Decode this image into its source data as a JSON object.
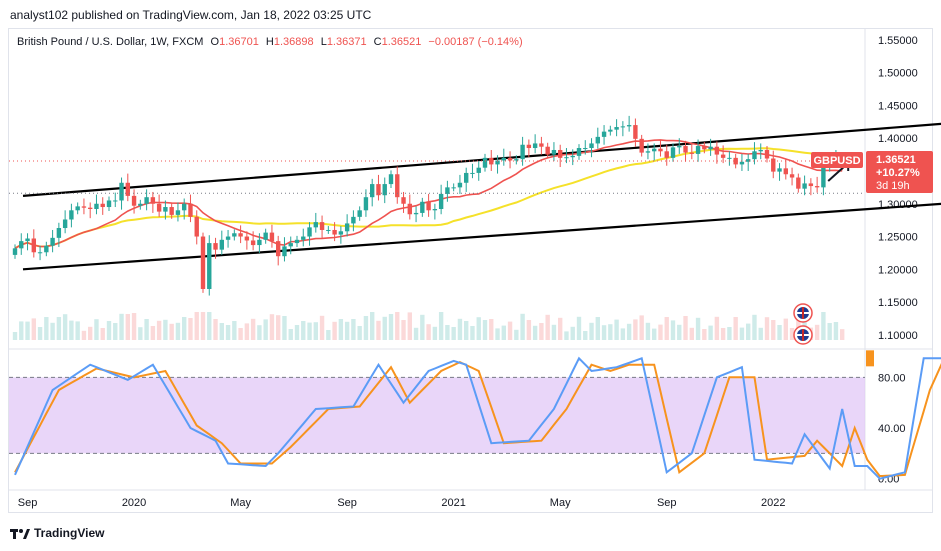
{
  "header": {
    "published_line": "analyst102 published on TradingView.com, Jan 18, 2022 03:25 UTC"
  },
  "legend": {
    "symbol": "British Pound / U.S. Dollar, 1W, FXCM",
    "open_label": "O",
    "open": "1.36701",
    "high_label": "H",
    "high": "1.36898",
    "low_label": "L",
    "low": "1.36371",
    "close_label": "C",
    "close": "1.36521",
    "change": "−0.00187 (−0.14%)"
  },
  "price_tags": {
    "symbol": "GBPUSD",
    "last": "1.36521",
    "pct": "+10.27%",
    "countdown": "3d 19h"
  },
  "colors": {
    "up": "#26a69a",
    "down": "#ef5350",
    "ma_fast": "#ef5350",
    "ma_slow": "#f5e12a",
    "channel": "#000000",
    "stoch_k": "#5b9cf6",
    "stoch_d": "#f7931e",
    "stoch_band": "#e1c8f7"
  },
  "footer": {
    "brand": "TradingView"
  },
  "chart_data": [
    {
      "type": "candlestick",
      "title": "British Pound / U.S. Dollar, 1W, FXCM",
      "y_ticks": [
        "1.55000",
        "1.50000",
        "1.45000",
        "1.40000",
        "1.35000",
        "1.30000",
        "1.25000",
        "1.20000",
        "1.15000",
        "1.10000"
      ],
      "ylim": [
        1.08,
        1.565
      ],
      "x_ticks": [
        "Sep",
        "2020",
        "May",
        "Sep",
        "2021",
        "May",
        "Sep",
        "2022"
      ],
      "channel": {
        "upper": [
          [
            0,
            1.312
          ],
          [
            148,
            1.422
          ]
        ],
        "lower": [
          [
            0,
            1.2
          ],
          [
            148,
            1.3
          ]
        ]
      },
      "close_series": [
        1.232,
        1.243,
        1.247,
        1.226,
        1.226,
        1.236,
        1.248,
        1.263,
        1.276,
        1.29,
        1.296,
        1.294,
        1.292,
        1.3,
        1.295,
        1.305,
        1.305,
        1.332,
        1.312,
        1.297,
        1.3,
        1.31,
        1.3,
        1.288,
        1.295,
        1.283,
        1.29,
        1.3,
        1.28,
        1.25,
        1.17,
        1.24,
        1.23,
        1.245,
        1.25,
        1.255,
        1.25,
        1.244,
        1.237,
        1.245,
        1.256,
        1.243,
        1.22,
        1.235,
        1.24,
        1.245,
        1.25,
        1.264,
        1.272,
        1.26,
        1.26,
        1.253,
        1.258,
        1.27,
        1.28,
        1.29,
        1.31,
        1.33,
        1.313,
        1.33,
        1.345,
        1.31,
        1.3,
        1.284,
        1.286,
        1.303,
        1.29,
        1.292,
        1.315,
        1.325,
        1.325,
        1.332,
        1.347,
        1.347,
        1.355,
        1.37,
        1.36,
        1.366,
        1.37,
        1.366,
        1.368,
        1.39,
        1.385,
        1.392,
        1.387,
        1.375,
        1.382,
        1.37,
        1.371,
        1.373,
        1.385,
        1.385,
        1.392,
        1.402,
        1.41,
        1.413,
        1.417,
        1.418,
        1.42,
        1.399,
        1.378,
        1.38,
        1.384,
        1.38,
        1.37,
        1.386,
        1.388,
        1.378,
        1.376,
        1.388,
        1.383,
        1.387,
        1.375,
        1.37,
        1.37,
        1.36,
        1.364,
        1.368,
        1.38,
        1.382,
        1.369,
        1.349,
        1.354,
        1.345,
        1.34,
        1.323,
        1.331,
        1.327,
        1.325,
        1.355,
        1.365,
        1.37,
        1.3652
      ],
      "series": [
        {
          "name": "MA fast"
        },
        {
          "name": "MA slow"
        }
      ]
    },
    {
      "type": "line",
      "title": "Stochastic",
      "y_ticks": [
        "80.00",
        "40.00",
        "0.00"
      ],
      "ylim": [
        -5,
        100
      ],
      "band": [
        20,
        80
      ],
      "x_ticks": [
        "Sep",
        "2020",
        "May",
        "Sep",
        "2021",
        "May",
        "Sep",
        "2022"
      ],
      "k_anchors": [
        [
          0,
          3
        ],
        [
          6,
          70
        ],
        [
          12,
          90
        ],
        [
          18,
          78
        ],
        [
          22,
          90
        ],
        [
          28,
          40
        ],
        [
          32,
          30
        ],
        [
          34,
          12
        ],
        [
          40,
          10
        ],
        [
          42,
          20
        ],
        [
          48,
          55
        ],
        [
          54,
          57
        ],
        [
          58,
          90
        ],
        [
          62,
          60
        ],
        [
          66,
          85
        ],
        [
          70,
          93
        ],
        [
          72,
          90
        ],
        [
          76,
          28
        ],
        [
          82,
          30
        ],
        [
          86,
          55
        ],
        [
          90,
          95
        ],
        [
          92,
          85
        ],
        [
          96,
          88
        ],
        [
          100,
          95
        ],
        [
          104,
          5
        ],
        [
          108,
          20
        ],
        [
          112,
          80
        ],
        [
          116,
          88
        ],
        [
          118,
          15
        ],
        [
          124,
          12
        ],
        [
          126,
          35
        ],
        [
          130,
          8
        ],
        [
          132,
          55
        ],
        [
          134,
          10
        ],
        [
          136,
          10
        ],
        [
          138,
          0
        ],
        [
          142,
          5
        ],
        [
          145,
          95
        ],
        [
          148,
          95
        ]
      ],
      "d_anchors": [
        [
          0,
          5
        ],
        [
          7,
          70
        ],
        [
          13,
          87
        ],
        [
          19,
          80
        ],
        [
          24,
          85
        ],
        [
          29,
          42
        ],
        [
          33,
          28
        ],
        [
          36,
          12
        ],
        [
          41,
          12
        ],
        [
          44,
          25
        ],
        [
          50,
          55
        ],
        [
          55,
          57
        ],
        [
          60,
          88
        ],
        [
          63,
          60
        ],
        [
          68,
          85
        ],
        [
          71,
          92
        ],
        [
          74,
          85
        ],
        [
          78,
          28
        ],
        [
          84,
          30
        ],
        [
          88,
          55
        ],
        [
          92,
          90
        ],
        [
          95,
          85
        ],
        [
          98,
          90
        ],
        [
          102,
          90
        ],
        [
          106,
          5
        ],
        [
          110,
          20
        ],
        [
          114,
          80
        ],
        [
          118,
          80
        ],
        [
          120,
          15
        ],
        [
          126,
          18
        ],
        [
          128,
          30
        ],
        [
          132,
          10
        ],
        [
          134,
          40
        ],
        [
          136,
          15
        ],
        [
          138,
          2
        ],
        [
          142,
          3
        ],
        [
          146,
          70
        ],
        [
          148,
          92
        ]
      ]
    }
  ]
}
